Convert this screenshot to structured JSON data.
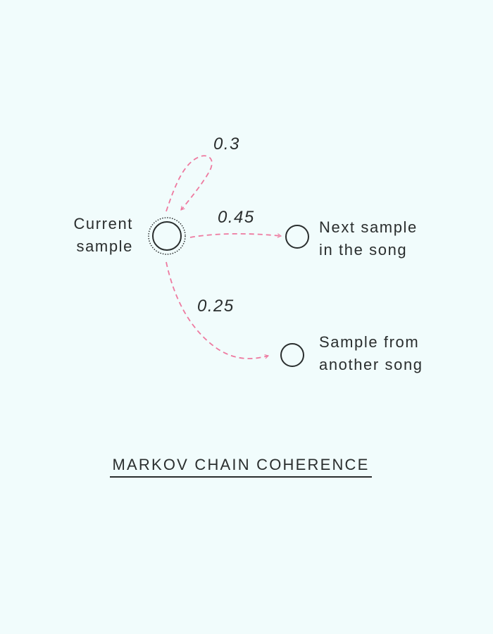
{
  "nodes": {
    "current": {
      "label_line1": "Current",
      "label_line2": "sample"
    },
    "next": {
      "label_line1": "Next sample",
      "label_line2": "in the song"
    },
    "other": {
      "label_line1": "Sample from",
      "label_line2": "another song"
    }
  },
  "transitions": {
    "self": {
      "probability": "0.3"
    },
    "next": {
      "probability": "0.45"
    },
    "other": {
      "probability": "0.25"
    }
  },
  "caption": "MARKOV CHAIN COHERENCE",
  "colors": {
    "background": "#f1fcfc",
    "arrow": "#ee7aa0",
    "ink": "#2a2e2e"
  }
}
